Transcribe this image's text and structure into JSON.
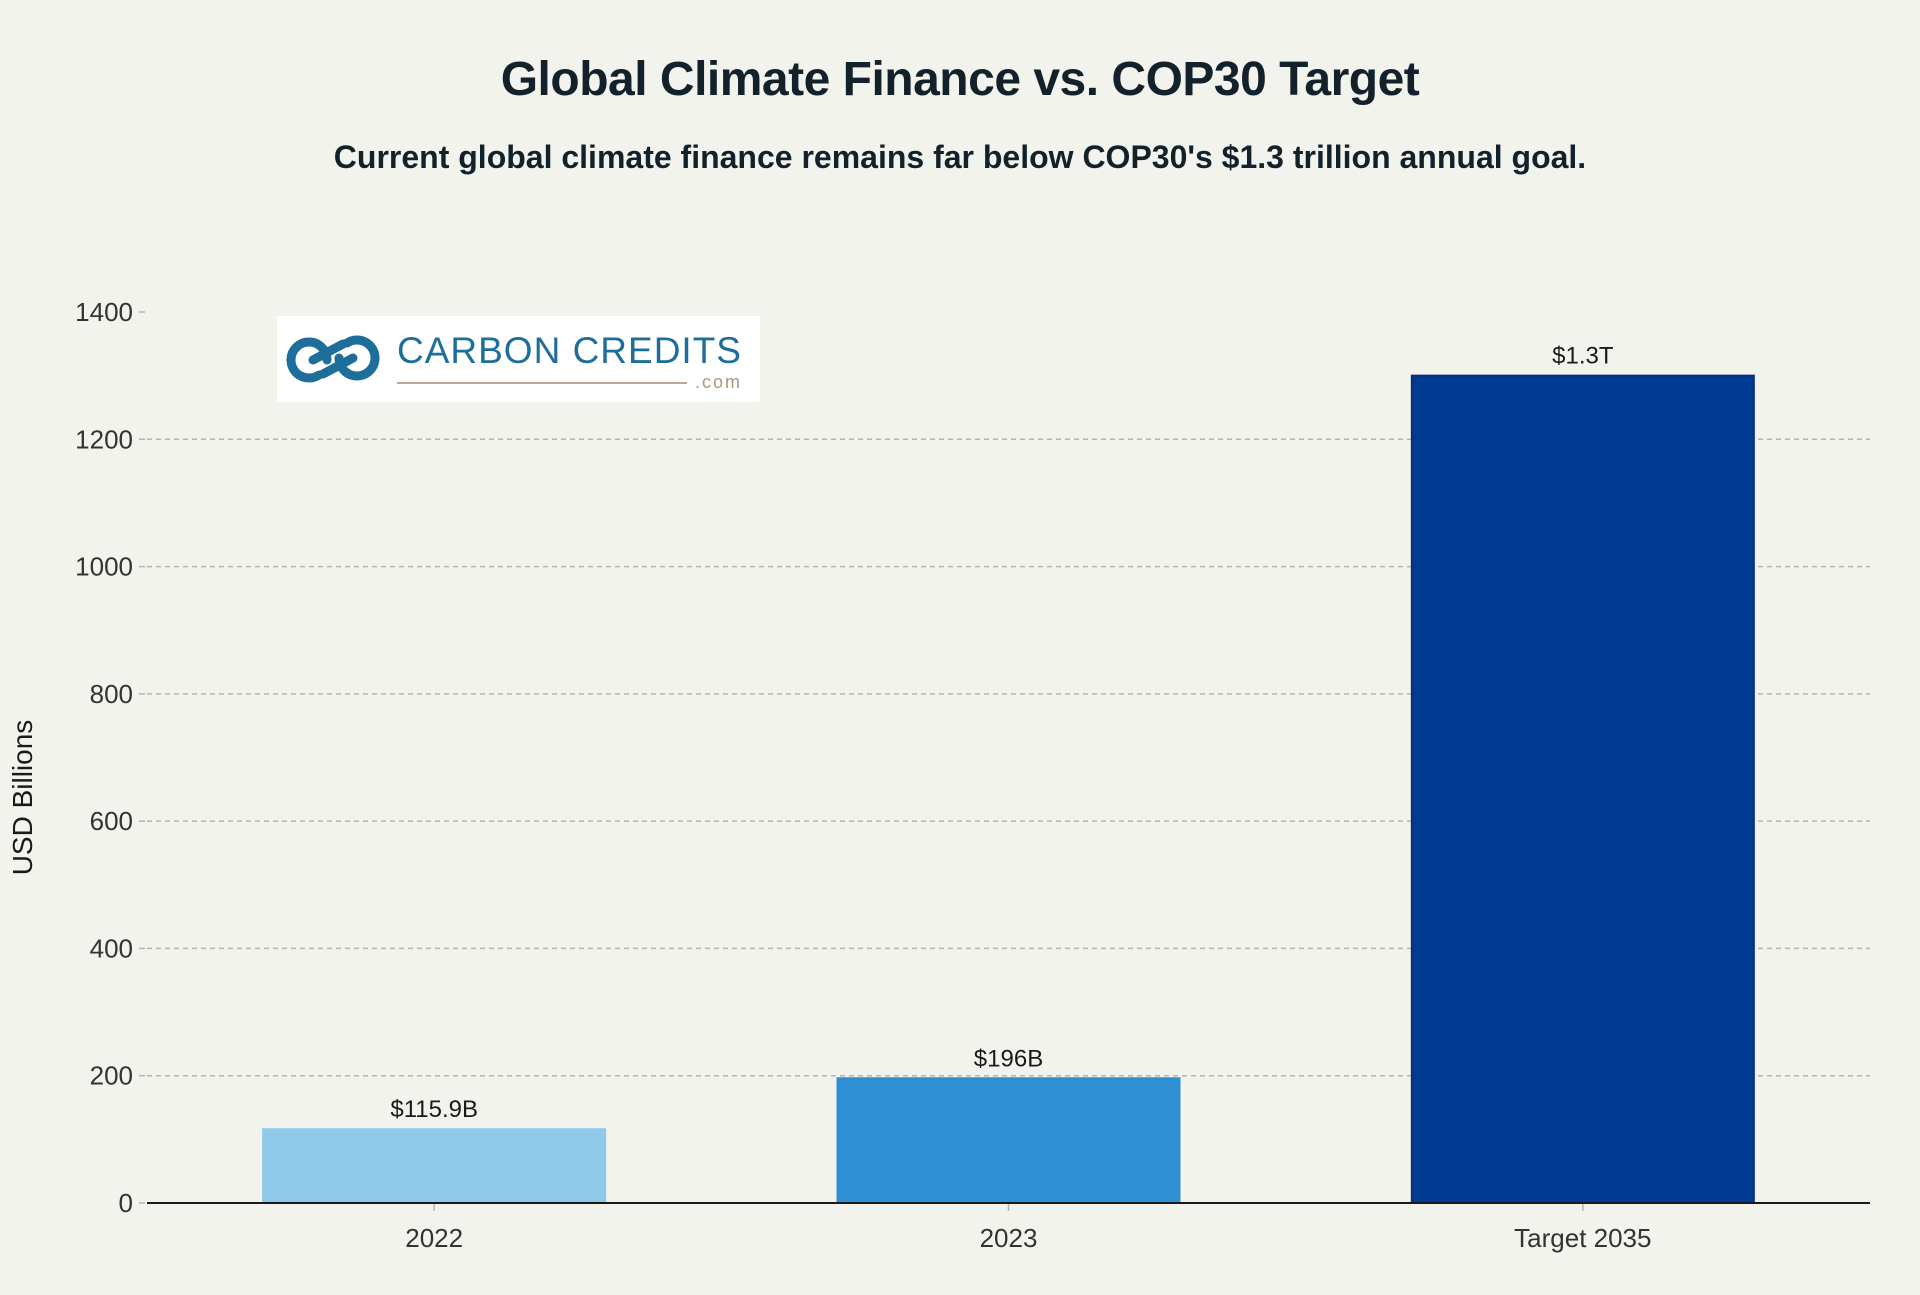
{
  "header": {
    "title": "Global Climate Finance vs. COP30 Target",
    "subtitle": "Current global climate finance remains far below COP30's $1.3 trillion annual goal."
  },
  "logo": {
    "text": "CARBON CREDITS",
    "suffix": ".com",
    "colors": {
      "mark": "#1e6e9b",
      "accent": "#b8a98c"
    }
  },
  "chart_data": {
    "type": "bar",
    "categories": [
      "2022",
      "2023",
      "Target 2035"
    ],
    "values": [
      115.9,
      196,
      1300
    ],
    "data_labels": [
      "$115.9B",
      "$196B",
      "$1.3T"
    ],
    "colors": [
      "#8fc8e8",
      "#2e8fd3",
      "#003a93"
    ],
    "ylabel": "USD Billions",
    "ylim": [
      0,
      1400
    ],
    "yticks": [
      0,
      200,
      400,
      600,
      800,
      1000,
      1200,
      1400
    ],
    "grid": true
  }
}
